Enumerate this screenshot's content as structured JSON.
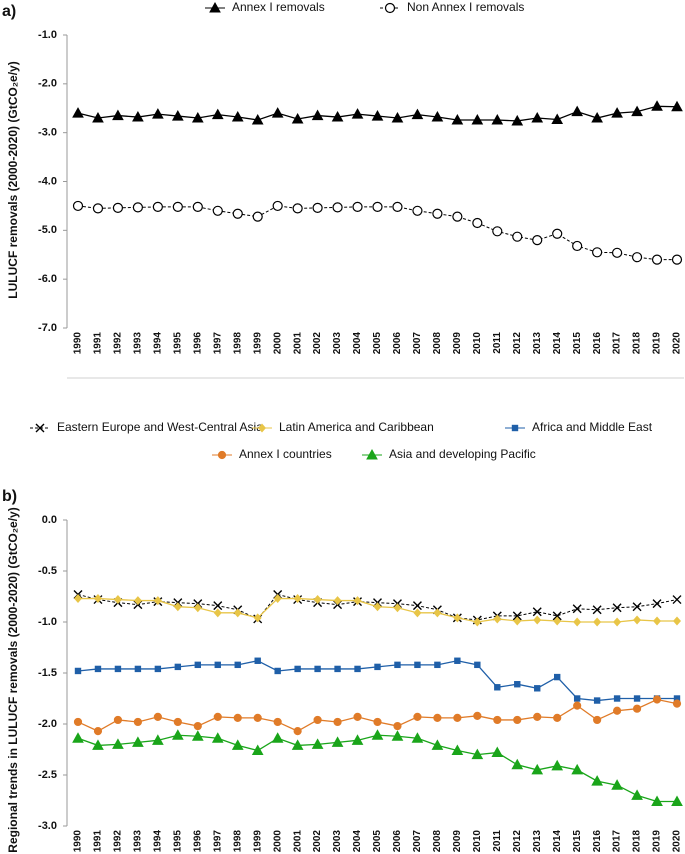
{
  "chart_data": [
    {
      "type": "line",
      "panel_label": "a)",
      "y_label": "LULUCF removals (2000-2020) (GtCO₂e/y)",
      "categories": [
        "1990",
        "1991",
        "1992",
        "1993",
        "1994",
        "1995",
        "1996",
        "1997",
        "1998",
        "1999",
        "2000",
        "2001",
        "2002",
        "2003",
        "2004",
        "2005",
        "2006",
        "2007",
        "2008",
        "2009",
        "2010",
        "2011",
        "2012",
        "2013",
        "2014",
        "2015",
        "2016",
        "2017",
        "2018",
        "2019",
        "2020"
      ],
      "ylim": [
        -7,
        -1
      ],
      "yticks": [
        {
          "value": -1,
          "label": "-1.0"
        },
        {
          "value": -2,
          "label": "-2.0"
        },
        {
          "value": -3,
          "label": "-3.0"
        },
        {
          "value": -4,
          "label": "-4.0"
        },
        {
          "value": -5,
          "label": "-5.0"
        },
        {
          "value": -6,
          "label": "-6.0"
        },
        {
          "value": -7,
          "label": "-7.0"
        }
      ],
      "grid": false,
      "series": [
        {
          "name": "Annex I removals",
          "color": "#000000",
          "marker": "triangle",
          "filled": true,
          "dashed": false,
          "values": [
            -2.6,
            -2.7,
            -2.65,
            -2.68,
            -2.62,
            -2.66,
            -2.7,
            -2.63,
            -2.68,
            -2.74,
            -2.6,
            -2.72,
            -2.65,
            -2.68,
            -2.62,
            -2.66,
            -2.7,
            -2.63,
            -2.68,
            -2.74,
            -2.74,
            -2.74,
            -2.76,
            -2.7,
            -2.73,
            -2.57,
            -2.7,
            -2.6,
            -2.57,
            -2.46,
            -2.47
          ]
        },
        {
          "name": "Non Annex I removals",
          "color": "#000000",
          "marker": "circle",
          "filled": false,
          "dashed": true,
          "values": [
            -4.5,
            -4.55,
            -4.54,
            -4.53,
            -4.52,
            -4.52,
            -4.52,
            -4.6,
            -4.66,
            -4.72,
            -4.5,
            -4.55,
            -4.54,
            -4.53,
            -4.52,
            -4.52,
            -4.52,
            -4.6,
            -4.66,
            -4.72,
            -4.85,
            -5.02,
            -5.13,
            -5.2,
            -5.07,
            -5.32,
            -5.45,
            -5.46,
            -5.55,
            -5.6,
            -5.6
          ]
        }
      ]
    },
    {
      "type": "line",
      "panel_label": "b)",
      "y_label": "Regional trends in LULUCF removals (2000-2020) (GtCO₂e/y)",
      "categories": [
        "1990",
        "1991",
        "1992",
        "1993",
        "1994",
        "1995",
        "1996",
        "1997",
        "1998",
        "1999",
        "2000",
        "2001",
        "2002",
        "2003",
        "2004",
        "2005",
        "2006",
        "2007",
        "2008",
        "2009",
        "2010",
        "2011",
        "2012",
        "2013",
        "2014",
        "2015",
        "2016",
        "2017",
        "2018",
        "2019",
        "2020"
      ],
      "ylim": [
        -3,
        0
      ],
      "yticks": [
        {
          "value": 0,
          "label": "0.0"
        },
        {
          "value": -0.5,
          "label": "-0.5"
        },
        {
          "value": -1,
          "label": "-1.0"
        },
        {
          "value": -1.5,
          "label": "-1.5"
        },
        {
          "value": -2,
          "label": "-2.0"
        },
        {
          "value": -2.5,
          "label": "-2.5"
        },
        {
          "value": -3,
          "label": "-3.0"
        }
      ],
      "grid": false,
      "series": [
        {
          "name": "Eastern Europe and West-Central Asia",
          "color": "#000000",
          "marker": "x",
          "filled": true,
          "dashed": true,
          "values": [
            -0.73,
            -0.78,
            -0.81,
            -0.83,
            -0.8,
            -0.81,
            -0.82,
            -0.84,
            -0.88,
            -0.97,
            -0.73,
            -0.78,
            -0.81,
            -0.83,
            -0.8,
            -0.81,
            -0.82,
            -0.84,
            -0.88,
            -0.96,
            -0.98,
            -0.94,
            -0.94,
            -0.9,
            -0.94,
            -0.87,
            -0.88,
            -0.86,
            -0.85,
            -0.82,
            -0.78
          ]
        },
        {
          "name": "Latin America and Caribbean",
          "color": "#e8c547",
          "marker": "diamond",
          "filled": true,
          "dashed": false,
          "values": [
            -0.77,
            -0.77,
            -0.78,
            -0.79,
            -0.79,
            -0.85,
            -0.86,
            -0.91,
            -0.91,
            -0.96,
            -0.77,
            -0.77,
            -0.78,
            -0.79,
            -0.79,
            -0.85,
            -0.86,
            -0.91,
            -0.91,
            -0.96,
            -1.0,
            -0.97,
            -0.99,
            -0.98,
            -0.99,
            -1.0,
            -1.0,
            -1.0,
            -0.98,
            -0.99,
            -0.99
          ]
        },
        {
          "name": "Africa and Middle East",
          "color": "#1f5fa8",
          "marker": "square",
          "filled": true,
          "dashed": false,
          "values": [
            -1.48,
            -1.46,
            -1.46,
            -1.46,
            -1.46,
            -1.44,
            -1.42,
            -1.42,
            -1.42,
            -1.38,
            -1.48,
            -1.46,
            -1.46,
            -1.46,
            -1.46,
            -1.44,
            -1.42,
            -1.42,
            -1.42,
            -1.38,
            -1.42,
            -1.64,
            -1.61,
            -1.65,
            -1.54,
            -1.75,
            -1.77,
            -1.75,
            -1.75,
            -1.75,
            -1.75
          ]
        },
        {
          "name": "Annex I countries",
          "color": "#e07b28",
          "marker": "circle",
          "filled": true,
          "dashed": false,
          "values": [
            -1.98,
            -2.07,
            -1.96,
            -1.98,
            -1.93,
            -1.98,
            -2.02,
            -1.93,
            -1.94,
            -1.94,
            -1.98,
            -2.07,
            -1.96,
            -1.98,
            -1.93,
            -1.98,
            -2.02,
            -1.93,
            -1.94,
            -1.94,
            -1.92,
            -1.96,
            -1.96,
            -1.93,
            -1.94,
            -1.82,
            -1.96,
            -1.87,
            -1.85,
            -1.76,
            -1.8
          ]
        },
        {
          "name": "Asia and developing Pacific",
          "color": "#1aa51a",
          "marker": "triangle",
          "filled": true,
          "dashed": false,
          "values": [
            -2.14,
            -2.21,
            -2.2,
            -2.18,
            -2.16,
            -2.11,
            -2.12,
            -2.14,
            -2.21,
            -2.26,
            -2.14,
            -2.21,
            -2.2,
            -2.18,
            -2.16,
            -2.11,
            -2.12,
            -2.14,
            -2.21,
            -2.26,
            -2.3,
            -2.28,
            -2.4,
            -2.45,
            -2.41,
            -2.45,
            -2.56,
            -2.6,
            -2.7,
            -2.76,
            -2.76
          ]
        }
      ]
    }
  ]
}
